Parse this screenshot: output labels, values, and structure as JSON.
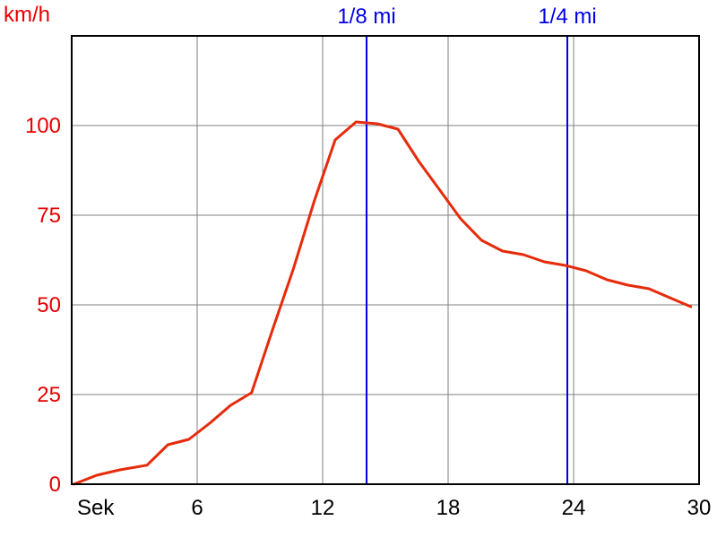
{
  "chart_data": {
    "type": "line",
    "ylabel": "km/h",
    "xunit_label": "Sek",
    "xlim": [
      0,
      30
    ],
    "ylim": [
      0,
      125
    ],
    "x_ticks": [
      6,
      12,
      18,
      24,
      30
    ],
    "y_ticks": [
      0,
      25,
      50,
      75,
      100
    ],
    "grid": true,
    "series": [
      {
        "color": "#e62b0a",
        "x": [
          0.1,
          1.2,
          2.3,
          3.6,
          4.6,
          5.6,
          6.6,
          7.6,
          8.6,
          9.6,
          10.6,
          11.6,
          12.6,
          13.6,
          14.6,
          15.6,
          16.6,
          17.6,
          18.6,
          19.6,
          20.6,
          21.6,
          22.6,
          23.6,
          24.6,
          25.6,
          26.6,
          27.6,
          28.6,
          29.6
        ],
        "y": [
          0,
          2.5,
          4,
          5.3,
          11,
          12.5,
          17,
          22,
          25.5,
          43,
          60,
          79,
          96,
          101,
          100.5,
          99,
          90,
          82,
          74,
          68,
          65,
          64,
          62,
          61,
          59.5,
          57,
          55.5,
          54.5,
          52,
          49.5
        ]
      }
    ],
    "markers": [
      {
        "label": "1/8 mi",
        "x": 14.1,
        "color": "#0000e6"
      },
      {
        "label": "1/4 mi",
        "x": 23.7,
        "color": "#0000e6"
      }
    ],
    "colors": {
      "axis_labels_y": "#e60000",
      "axis_labels_x": "#000000",
      "grid": "#808080"
    }
  }
}
